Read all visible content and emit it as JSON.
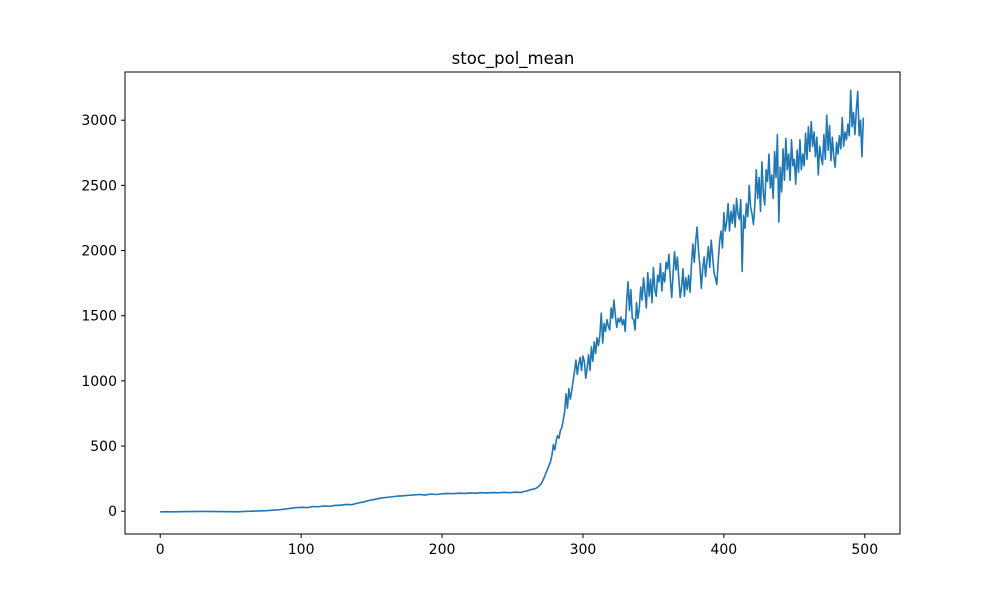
{
  "chart_data": {
    "type": "line",
    "title": "stoc_pol_mean",
    "xlabel": "",
    "ylabel": "",
    "xlim": [
      -25,
      525
    ],
    "ylim": [
      -175,
      3370
    ],
    "xticks": [
      0,
      100,
      200,
      300,
      400,
      500
    ],
    "yticks": [
      0,
      500,
      1000,
      1500,
      2000,
      2500,
      3000
    ],
    "grid": false,
    "legend": "none",
    "series": [
      {
        "name": "stoc_pol_mean",
        "color": "#1f77b4",
        "points": [
          [
            0,
            -5
          ],
          [
            10,
            -5
          ],
          [
            20,
            -3
          ],
          [
            30,
            -2
          ],
          [
            40,
            -3
          ],
          [
            50,
            -4
          ],
          [
            55,
            -5
          ],
          [
            60,
            -2
          ],
          [
            65,
            0
          ],
          [
            70,
            2
          ],
          [
            75,
            4
          ],
          [
            80,
            8
          ],
          [
            85,
            12
          ],
          [
            90,
            18
          ],
          [
            95,
            26
          ],
          [
            100,
            30
          ],
          [
            105,
            28
          ],
          [
            108,
            36
          ],
          [
            112,
            34
          ],
          [
            116,
            40
          ],
          [
            120,
            38
          ],
          [
            124,
            44
          ],
          [
            128,
            46
          ],
          [
            132,
            52
          ],
          [
            136,
            50
          ],
          [
            140,
            62
          ],
          [
            144,
            70
          ],
          [
            148,
            82
          ],
          [
            152,
            90
          ],
          [
            156,
            100
          ],
          [
            160,
            105
          ],
          [
            164,
            110
          ],
          [
            168,
            115
          ],
          [
            172,
            118
          ],
          [
            176,
            122
          ],
          [
            180,
            125
          ],
          [
            184,
            128
          ],
          [
            188,
            124
          ],
          [
            192,
            132
          ],
          [
            196,
            128
          ],
          [
            200,
            133
          ],
          [
            204,
            136
          ],
          [
            208,
            134
          ],
          [
            212,
            138
          ],
          [
            216,
            136
          ],
          [
            220,
            140
          ],
          [
            224,
            138
          ],
          [
            228,
            142
          ],
          [
            232,
            140
          ],
          [
            236,
            143
          ],
          [
            240,
            141
          ],
          [
            244,
            145
          ],
          [
            248,
            142
          ],
          [
            252,
            146
          ],
          [
            256,
            144
          ],
          [
            258,
            150
          ],
          [
            260,
            155
          ],
          [
            262,
            162
          ],
          [
            264,
            168
          ],
          [
            266,
            172
          ],
          [
            268,
            185
          ],
          [
            270,
            205
          ],
          [
            272,
            245
          ],
          [
            274,
            300
          ],
          [
            276,
            355
          ],
          [
            277,
            380
          ],
          [
            278,
            430
          ],
          [
            279,
            510
          ],
          [
            280,
            470
          ],
          [
            281,
            540
          ],
          [
            282,
            580
          ],
          [
            283,
            560
          ],
          [
            284,
            620
          ],
          [
            285,
            640
          ],
          [
            286,
            700
          ],
          [
            287,
            760
          ],
          [
            288,
            900
          ],
          [
            289,
            790
          ],
          [
            290,
            940
          ],
          [
            291,
            860
          ],
          [
            292,
            920
          ],
          [
            293,
            1000
          ],
          [
            294,
            1070
          ],
          [
            295,
            1160
          ],
          [
            296,
            1050
          ],
          [
            297,
            1130
          ],
          [
            298,
            1180
          ],
          [
            299,
            1080
          ],
          [
            300,
            1190
          ],
          [
            301,
            1150
          ],
          [
            302,
            1020
          ],
          [
            303,
            1100
          ],
          [
            304,
            1200
          ],
          [
            305,
            1080
          ],
          [
            306,
            1260
          ],
          [
            307,
            1150
          ],
          [
            308,
            1300
          ],
          [
            309,
            1210
          ],
          [
            310,
            1330
          ],
          [
            311,
            1270
          ],
          [
            312,
            1350
          ],
          [
            313,
            1520
          ],
          [
            314,
            1290
          ],
          [
            315,
            1440
          ],
          [
            316,
            1380
          ],
          [
            317,
            1470
          ],
          [
            318,
            1420
          ],
          [
            319,
            1390
          ],
          [
            320,
            1560
          ],
          [
            321,
            1480
          ],
          [
            322,
            1620
          ],
          [
            323,
            1500
          ],
          [
            324,
            1410
          ],
          [
            325,
            1480
          ],
          [
            326,
            1450
          ],
          [
            327,
            1490
          ],
          [
            328,
            1430
          ],
          [
            329,
            1470
          ],
          [
            330,
            1380
          ],
          [
            331,
            1610
          ],
          [
            332,
            1760
          ],
          [
            333,
            1540
          ],
          [
            334,
            1700
          ],
          [
            335,
            1480
          ],
          [
            336,
            1470
          ],
          [
            337,
            1390
          ],
          [
            338,
            1600
          ],
          [
            339,
            1480
          ],
          [
            340,
            1560
          ],
          [
            341,
            1720
          ],
          [
            342,
            1620
          ],
          [
            343,
            1790
          ],
          [
            344,
            1680
          ],
          [
            345,
            1560
          ],
          [
            346,
            1830
          ],
          [
            347,
            1650
          ],
          [
            348,
            1780
          ],
          [
            349,
            1600
          ],
          [
            350,
            1870
          ],
          [
            351,
            1700
          ],
          [
            352,
            1650
          ],
          [
            353,
            1810
          ],
          [
            354,
            1760
          ],
          [
            355,
            1900
          ],
          [
            356,
            1690
          ],
          [
            357,
            1830
          ],
          [
            358,
            1760
          ],
          [
            359,
            1910
          ],
          [
            360,
            1860
          ],
          [
            361,
            1970
          ],
          [
            362,
            1780
          ],
          [
            363,
            1640
          ],
          [
            364,
            1830
          ],
          [
            365,
            1990
          ],
          [
            366,
            1850
          ],
          [
            367,
            1950
          ],
          [
            368,
            1790
          ],
          [
            369,
            1640
          ],
          [
            370,
            1720
          ],
          [
            371,
            1860
          ],
          [
            372,
            1650
          ],
          [
            373,
            1790
          ],
          [
            374,
            1700
          ],
          [
            375,
            1810
          ],
          [
            376,
            1680
          ],
          [
            377,
            1890
          ],
          [
            378,
            2050
          ],
          [
            379,
            1910
          ],
          [
            380,
            2070
          ],
          [
            381,
            2180
          ],
          [
            382,
            2000
          ],
          [
            383,
            1880
          ],
          [
            384,
            1710
          ],
          [
            385,
            1860
          ],
          [
            386,
            1950
          ],
          [
            387,
            1800
          ],
          [
            388,
            1920
          ],
          [
            389,
            2030
          ],
          [
            390,
            1870
          ],
          [
            391,
            2080
          ],
          [
            392,
            1960
          ],
          [
            393,
            1830
          ],
          [
            394,
            1790
          ],
          [
            395,
            1740
          ],
          [
            396,
            1920
          ],
          [
            397,
            2070
          ],
          [
            398,
            2150
          ],
          [
            399,
            2020
          ],
          [
            400,
            2290
          ],
          [
            401,
            2150
          ],
          [
            402,
            2220
          ],
          [
            403,
            2360
          ],
          [
            404,
            2150
          ],
          [
            405,
            2300
          ],
          [
            406,
            2210
          ],
          [
            407,
            2350
          ],
          [
            408,
            2180
          ],
          [
            409,
            2400
          ],
          [
            410,
            2280
          ],
          [
            411,
            2240
          ],
          [
            412,
            2390
          ],
          [
            413,
            1840
          ],
          [
            414,
            2270
          ],
          [
            415,
            2170
          ],
          [
            416,
            2360
          ],
          [
            417,
            2260
          ],
          [
            418,
            2500
          ],
          [
            419,
            2330
          ],
          [
            420,
            2280
          ],
          [
            421,
            2200
          ],
          [
            422,
            2350
          ],
          [
            423,
            2620
          ],
          [
            424,
            2400
          ],
          [
            425,
            2560
          ],
          [
            426,
            2300
          ],
          [
            427,
            2680
          ],
          [
            428,
            2440
          ],
          [
            429,
            2350
          ],
          [
            430,
            2620
          ],
          [
            431,
            2530
          ],
          [
            432,
            2740
          ],
          [
            433,
            2480
          ],
          [
            434,
            2580
          ],
          [
            435,
            2400
          ],
          [
            436,
            2760
          ],
          [
            437,
            2560
          ],
          [
            438,
            2890
          ],
          [
            439,
            2220
          ],
          [
            440,
            2640
          ],
          [
            441,
            2450
          ],
          [
            442,
            2780
          ],
          [
            443,
            2540
          ],
          [
            444,
            2860
          ],
          [
            445,
            2620
          ],
          [
            446,
            2740
          ],
          [
            447,
            2540
          ],
          [
            448,
            2850
          ],
          [
            449,
            2650
          ],
          [
            450,
            2700
          ],
          [
            451,
            2510
          ],
          [
            452,
            2770
          ],
          [
            453,
            2600
          ],
          [
            454,
            2850
          ],
          [
            455,
            2620
          ],
          [
            456,
            2740
          ],
          [
            457,
            2650
          ],
          [
            458,
            2900
          ],
          [
            459,
            2700
          ],
          [
            460,
            2950
          ],
          [
            461,
            2760
          ],
          [
            462,
            2990
          ],
          [
            463,
            2800
          ],
          [
            464,
            2910
          ],
          [
            465,
            2720
          ],
          [
            466,
            2870
          ],
          [
            467,
            2580
          ],
          [
            468,
            2800
          ],
          [
            469,
            2720
          ],
          [
            470,
            2660
          ],
          [
            471,
            2890
          ],
          [
            472,
            2700
          ],
          [
            473,
            3040
          ],
          [
            474,
            2770
          ],
          [
            475,
            2960
          ],
          [
            476,
            2690
          ],
          [
            477,
            2870
          ],
          [
            478,
            2720
          ],
          [
            479,
            2640
          ],
          [
            480,
            2830
          ],
          [
            481,
            2740
          ],
          [
            482,
            2880
          ],
          [
            483,
            2780
          ],
          [
            484,
            3020
          ],
          [
            485,
            2800
          ],
          [
            486,
            2910
          ],
          [
            487,
            2850
          ],
          [
            488,
            2970
          ],
          [
            489,
            2880
          ],
          [
            490,
            3230
          ],
          [
            491,
            2950
          ],
          [
            492,
            3060
          ],
          [
            493,
            2890
          ],
          [
            494,
            3080
          ],
          [
            495,
            3220
          ],
          [
            496,
            2880
          ],
          [
            497,
            3000
          ],
          [
            498,
            2720
          ],
          [
            499,
            3020
          ]
        ]
      }
    ]
  }
}
